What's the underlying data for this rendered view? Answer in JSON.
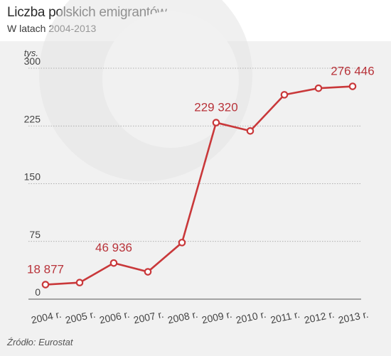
{
  "header": {
    "title": "Liczba polskich emigrantów",
    "subtitle": "W latach 2004-2013"
  },
  "source": "Źródło: Eurostat",
  "colors": {
    "line": "#c9383a",
    "label": "#b8333a",
    "axis_text": "#444444",
    "grid": "#9a9a9a",
    "watermark": "#e3e3e3"
  },
  "chart_data": {
    "type": "line",
    "unit_label": "tys.",
    "categories": [
      "2004 r.",
      "2005 r.",
      "2006 r.",
      "2007 r.",
      "2008 r.",
      "2009 r.",
      "2010 r.",
      "2011 r.",
      "2012 r.",
      "2013 r."
    ],
    "values": [
      18.877,
      21.5,
      46.936,
      35.5,
      73.5,
      229.32,
      218.5,
      265.5,
      274,
      276.446
    ],
    "ylim": [
      0,
      300
    ],
    "yticks": [
      0,
      75,
      150,
      225,
      300
    ],
    "grid": true,
    "data_labels": [
      {
        "index": 0,
        "text": "18 877"
      },
      {
        "index": 2,
        "text": "46 936"
      },
      {
        "index": 5,
        "text": "229 320"
      },
      {
        "index": 9,
        "text": "276 446"
      }
    ]
  }
}
